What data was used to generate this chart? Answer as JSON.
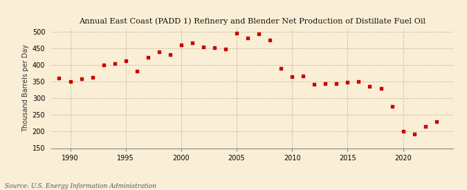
{
  "title": "Annual East Coast (PADD 1) Refinery and Blender Net Production of Distillate Fuel Oil",
  "ylabel": "Thousand Barrels per Day",
  "source": "Source: U.S. Energy Information Administration",
  "background_color": "#faefd6",
  "plot_bg_color": "#faefd6",
  "marker_color": "#cc0000",
  "ylim": [
    150,
    510
  ],
  "yticks": [
    150,
    200,
    250,
    300,
    350,
    400,
    450,
    500
  ],
  "xlim": [
    1988.3,
    2024.5
  ],
  "xticks": [
    1990,
    1995,
    2000,
    2005,
    2010,
    2015,
    2020
  ],
  "years": [
    1989,
    1990,
    1991,
    1992,
    1993,
    1994,
    1995,
    1996,
    1997,
    1998,
    1999,
    2000,
    2001,
    2002,
    2003,
    2004,
    2005,
    2006,
    2007,
    2008,
    2009,
    2010,
    2011,
    2012,
    2013,
    2014,
    2015,
    2016,
    2017,
    2018,
    2019,
    2020,
    2021,
    2022,
    2023
  ],
  "values": [
    360,
    350,
    358,
    363,
    400,
    405,
    413,
    382,
    424,
    440,
    432,
    460,
    466,
    455,
    452,
    448,
    495,
    482,
    494,
    475,
    390,
    365,
    368,
    343,
    345,
    344,
    348,
    350,
    335,
    330,
    275,
    200,
    193,
    215,
    230
  ]
}
